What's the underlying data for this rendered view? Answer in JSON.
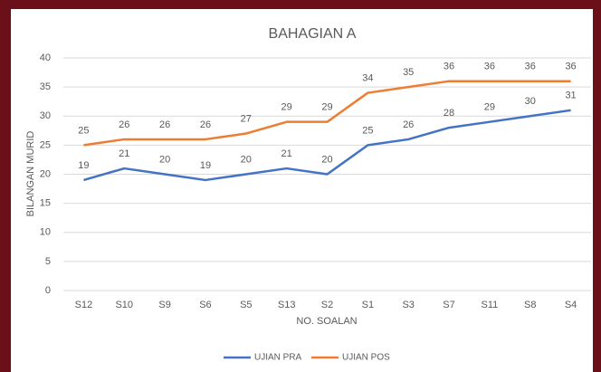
{
  "chart_data": {
    "type": "line",
    "title": "BAHAGIAN A",
    "x_label": "NO. SOALAN",
    "y_label": "BILANGAN MURID",
    "categories": [
      "S12",
      "S10",
      "S9",
      "S6",
      "S5",
      "S13",
      "S2",
      "S1",
      "S3",
      "S7",
      "S11",
      "S8",
      "S4"
    ],
    "series": [
      {
        "name": "UJIAN PRA",
        "color": "#4472c4",
        "values": [
          19,
          21,
          20,
          19,
          20,
          21,
          20,
          25,
          26,
          28,
          29,
          30,
          31
        ]
      },
      {
        "name": "UJIAN POS",
        "color": "#ed7d31",
        "values": [
          25,
          26,
          26,
          26,
          27,
          29,
          29,
          34,
          35,
          36,
          36,
          36,
          36
        ]
      }
    ],
    "ylim": [
      0,
      40
    ],
    "yticks": [
      0,
      5,
      10,
      15,
      20,
      25,
      30,
      35,
      40
    ],
    "grid": true,
    "data_labels": true,
    "legend": "bottom"
  }
}
